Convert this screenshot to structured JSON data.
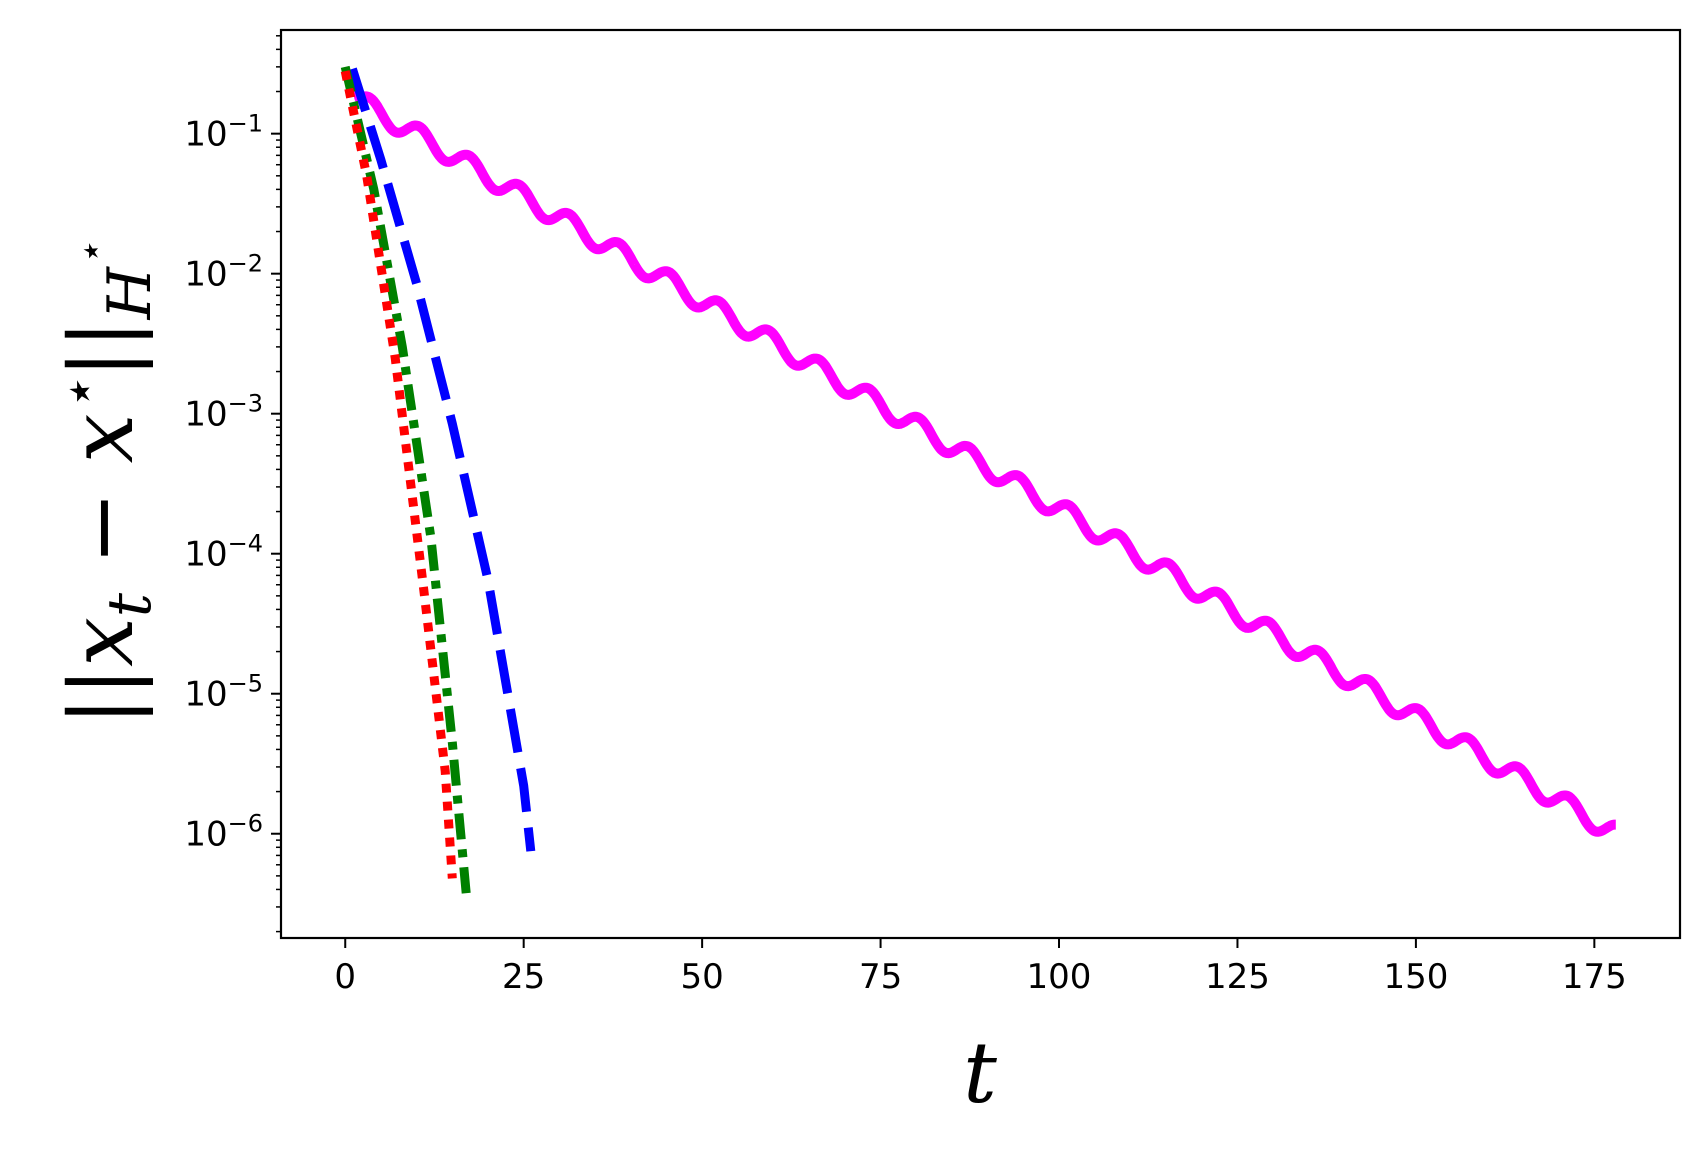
{
  "chart_data": {
    "type": "line",
    "title": "",
    "xlabel": "t",
    "ylabel": "||x_t - x*||_{H*}",
    "ylabel_parts": {
      "lhs": "||x",
      "sub": "t",
      "mid": " − x",
      "sup": "⋆",
      "rhs": "||",
      "norm_sub": "H",
      "norm_sup": "⋆"
    },
    "xlim": [
      -9,
      187
    ],
    "ylim": [
      1.8e-07,
      0.55
    ],
    "yscale": "log",
    "grid": false,
    "legend": "none",
    "x_ticks": [
      {
        "value": 0,
        "label": "0"
      },
      {
        "value": 25,
        "label": "25"
      },
      {
        "value": 50,
        "label": "50"
      },
      {
        "value": 75,
        "label": "75"
      },
      {
        "value": 100,
        "label": "100"
      },
      {
        "value": 125,
        "label": "125"
      },
      {
        "value": 150,
        "label": "150"
      },
      {
        "value": 175,
        "label": "175"
      }
    ],
    "y_ticks": [
      {
        "value": 0.1,
        "base": "10",
        "exp": "−1"
      },
      {
        "value": 0.01,
        "base": "10",
        "exp": "−2"
      },
      {
        "value": 0.001,
        "base": "10",
        "exp": "−3"
      },
      {
        "value": 0.0001,
        "base": "10",
        "exp": "−4"
      },
      {
        "value": 1e-05,
        "base": "10",
        "exp": "−5"
      },
      {
        "value": 1e-06,
        "base": "10",
        "exp": "−6"
      }
    ],
    "series": [
      {
        "color": "#ff00ff",
        "style": "solid",
        "generator": "oscillating-decay",
        "x_range": [
          1,
          178
        ],
        "y_start": 0.28,
        "y_end": 1e-06,
        "oscillation_period": 7,
        "points": [
          [
            1,
            0.28
          ],
          [
            3,
            0.17
          ],
          [
            10,
            0.1
          ],
          [
            17,
            0.063
          ],
          [
            25,
            0.037
          ],
          [
            33,
            0.022
          ],
          [
            40,
            0.0135
          ],
          [
            47,
            0.0079
          ],
          [
            54,
            0.0049
          ],
          [
            61,
            0.0031
          ],
          [
            68,
            0.0018
          ],
          [
            75,
            0.00108
          ],
          [
            82,
            0.00066
          ],
          [
            89,
            0.0004
          ],
          [
            96,
            0.00024
          ],
          [
            103,
            0.000145
          ],
          [
            110,
            8.5e-05
          ],
          [
            117,
            5.1e-05
          ],
          [
            124,
            3.1e-05
          ],
          [
            131,
            1.9e-05
          ],
          [
            138,
            1.15e-05
          ],
          [
            145,
            6.8e-06
          ],
          [
            152,
            4.2e-06
          ],
          [
            159,
            2.5e-06
          ],
          [
            166,
            1.6e-06
          ],
          [
            173,
            1.3e-06
          ],
          [
            178,
            1e-06
          ]
        ]
      },
      {
        "color": "#0000ff",
        "style": "dashed",
        "points": [
          [
            1,
            0.29
          ],
          [
            5,
            0.065
          ],
          [
            10,
            0.0085
          ],
          [
            15,
            0.00085
          ],
          [
            20,
            6.5e-05
          ],
          [
            25,
            2.2e-06
          ],
          [
            26,
            7.5e-07
          ]
        ]
      },
      {
        "color": "#008000",
        "style": "dashdot",
        "points": [
          [
            0,
            0.3
          ],
          [
            4,
            0.04
          ],
          [
            8,
            0.003
          ],
          [
            12,
            0.00013
          ],
          [
            15,
            4.5e-06
          ],
          [
            17,
            3.5e-07
          ]
        ]
      },
      {
        "color": "#ff0000",
        "style": "dotted",
        "points": [
          [
            0,
            0.28
          ],
          [
            3,
            0.05
          ],
          [
            7,
            0.0025
          ],
          [
            11,
            5.5e-05
          ],
          [
            14,
            2.8e-06
          ],
          [
            15,
            4.8e-07
          ]
        ]
      }
    ]
  }
}
